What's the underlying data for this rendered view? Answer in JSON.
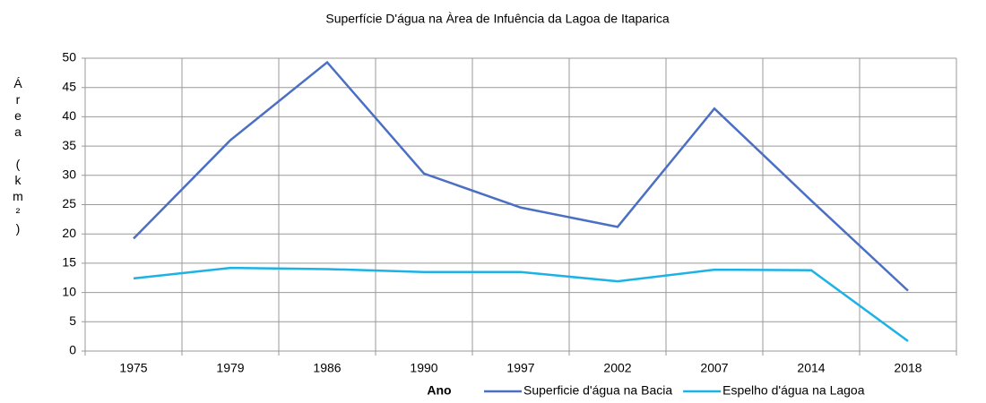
{
  "chart_data": {
    "type": "line",
    "title": "Superfície D'água na Àrea de Infuência da Lagoa de Itaparica",
    "x_label": "Ano",
    "y_label": "Área (km²)",
    "categories": [
      "1975",
      "1979",
      "1986",
      "1990",
      "1997",
      "2002",
      "2007",
      "2014",
      "2018"
    ],
    "series": [
      {
        "name": "Superficie d'água na Bacia",
        "color": "#4a6fc3",
        "values": [
          19.2,
          36,
          49.3,
          30.3,
          24.5,
          21.2,
          41.4,
          25.7,
          10.3
        ]
      },
      {
        "name": "Espelho d'água na Lagoa",
        "color": "#1cb2e6",
        "values": [
          12.4,
          14.2,
          14.0,
          13.5,
          13.5,
          11.9,
          13.9,
          13.8,
          1.7
        ]
      }
    ],
    "ylim": [
      0,
      50
    ],
    "yticks": [
      0,
      5,
      10,
      15,
      20,
      25,
      30,
      35,
      40,
      45,
      50
    ],
    "grid": true,
    "legend": "bottom"
  }
}
